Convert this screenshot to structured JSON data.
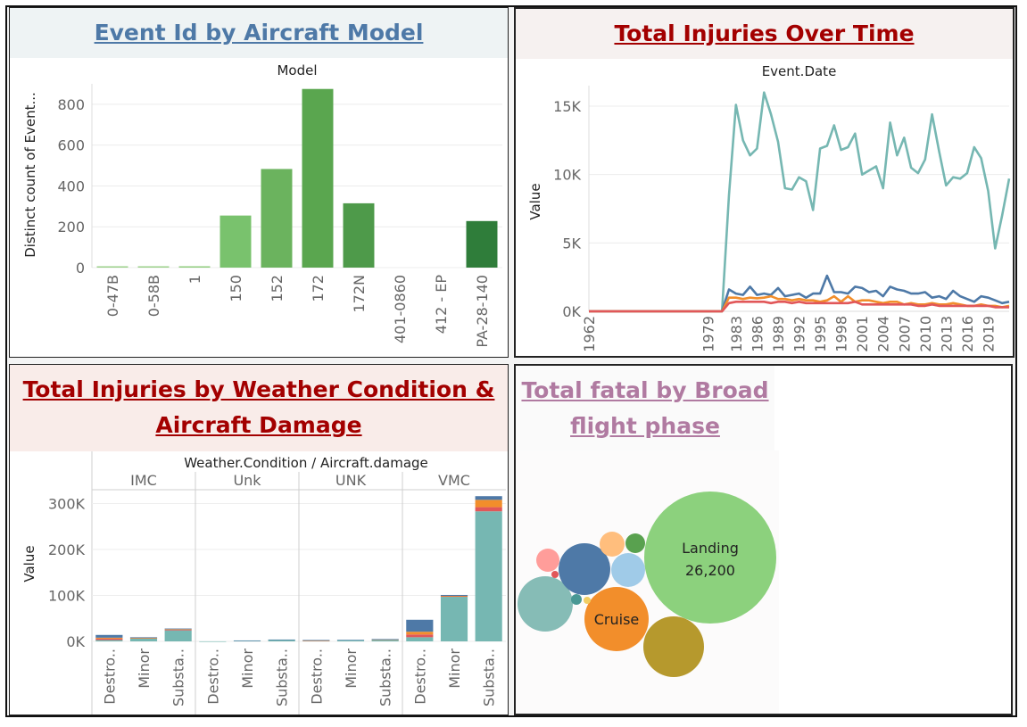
{
  "titles": {
    "model": "Event Id by Aircraft Model",
    "time": "Total Injuries Over Time",
    "weather_line1": "Total Injuries by Weather Condition &",
    "weather_line2": "Aircraft Damage",
    "phase_line1": "Total fatal by Broad",
    "phase_line2": "flight phase"
  },
  "colors": {
    "title_blue": "#4e79a7",
    "title_red": "#a30000",
    "title_pink": "#b07aa1"
  },
  "chart_data": [
    {
      "type": "bar",
      "header": "Model",
      "ylabel": "Distinct count of Event...",
      "ylim": [
        0,
        900
      ],
      "yticks": [
        0,
        200,
        400,
        600,
        800
      ],
      "categories": [
        "0-47B",
        "0-58B",
        "1",
        "150",
        "152",
        "172",
        "172N",
        "401-0860",
        "412 - EP",
        "PA-28-140"
      ],
      "values": [
        1,
        1,
        5,
        255,
        483,
        875,
        315,
        0,
        0,
        228
      ],
      "colors": [
        "#9bd08a",
        "#9bd08a",
        "#8fcc7d",
        "#79c26d",
        "#6bb35e",
        "#5aa64f",
        "#4e9a4a",
        "#9bd08a",
        "#9bd08a",
        "#2f7d3a"
      ]
    },
    {
      "type": "line",
      "header": "Event.Date",
      "ylabel": "Value",
      "ylim": [
        0,
        16500
      ],
      "yticks": [
        0,
        5000,
        10000,
        15000
      ],
      "ytick_labels": [
        "0K",
        "5K",
        "10K",
        "15K"
      ],
      "xlim": [
        1962,
        2022
      ],
      "xticks": [
        1962,
        1979,
        1983,
        1986,
        1989,
        1992,
        1995,
        1998,
        2001,
        2004,
        2007,
        2010,
        2013,
        2016,
        2019
      ],
      "series": [
        {
          "color": "#76b7b2",
          "x": [
            1962,
            1977,
            1979,
            1980,
            1981,
            1982,
            1983,
            1984,
            1985,
            1986,
            1987,
            1988,
            1989,
            1990,
            1991,
            1992,
            1993,
            1994,
            1995,
            1996,
            1997,
            1998,
            1999,
            2000,
            2001,
            2002,
            2003,
            2004,
            2005,
            2006,
            2007,
            2008,
            2009,
            2010,
            2011,
            2012,
            2013,
            2014,
            2015,
            2016,
            2017,
            2018,
            2019,
            2020,
            2021,
            2022
          ],
          "y": [
            0,
            0,
            0,
            0,
            0,
            8500,
            15100,
            12500,
            11400,
            11900,
            16000,
            14400,
            12400,
            9000,
            8900,
            9800,
            9500,
            7400,
            11900,
            12100,
            13600,
            11800,
            12000,
            13000,
            10000,
            10300,
            10600,
            9000,
            13800,
            11400,
            12700,
            10500,
            10100,
            11100,
            14400,
            11700,
            9200,
            9800,
            9700,
            10100,
            12000,
            11200,
            8800,
            4600,
            7000,
            9700
          ]
        },
        {
          "color": "#4e79a7",
          "x": [
            1962,
            1977,
            1979,
            1980,
            1981,
            1982,
            1983,
            1984,
            1985,
            1986,
            1987,
            1988,
            1989,
            1990,
            1991,
            1992,
            1993,
            1994,
            1995,
            1996,
            1997,
            1998,
            1999,
            2000,
            2001,
            2002,
            2003,
            2004,
            2005,
            2006,
            2007,
            2008,
            2009,
            2010,
            2011,
            2012,
            2013,
            2014,
            2015,
            2016,
            2017,
            2018,
            2019,
            2020,
            2021,
            2022
          ],
          "y": [
            0,
            0,
            0,
            0,
            0,
            1600,
            1300,
            1200,
            1800,
            1200,
            1300,
            1200,
            1700,
            1100,
            1200,
            1300,
            1000,
            1300,
            1300,
            2600,
            1400,
            1400,
            1300,
            1800,
            1700,
            1400,
            1500,
            1100,
            1800,
            1600,
            1500,
            1300,
            1300,
            1400,
            1000,
            1100,
            900,
            1500,
            1100,
            900,
            700,
            1100,
            1000,
            800,
            600,
            700
          ]
        },
        {
          "color": "#f28e2b",
          "x": [
            1962,
            1977,
            1979,
            1980,
            1981,
            1982,
            1983,
            1984,
            1985,
            1986,
            1987,
            1988,
            1989,
            1990,
            1991,
            1992,
            1993,
            1994,
            1995,
            1996,
            1997,
            1998,
            1999,
            2000,
            2001,
            2002,
            2003,
            2004,
            2005,
            2006,
            2007,
            2008,
            2009,
            2010,
            2011,
            2012,
            2013,
            2014,
            2015,
            2016,
            2017,
            2018,
            2019,
            2020,
            2021,
            2022
          ],
          "y": [
            0,
            0,
            0,
            0,
            0,
            1000,
            1000,
            900,
            1000,
            950,
            1000,
            1100,
            900,
            900,
            800,
            900,
            800,
            800,
            700,
            800,
            1100,
            700,
            1100,
            700,
            800,
            800,
            700,
            600,
            700,
            700,
            500,
            600,
            500,
            500,
            600,
            500,
            500,
            600,
            500,
            400,
            400,
            500,
            400,
            400,
            300,
            400
          ]
        },
        {
          "color": "#e15759",
          "x": [
            1962,
            1977,
            1979,
            1980,
            1981,
            1982,
            1983,
            1984,
            1985,
            1986,
            1987,
            1988,
            1989,
            1990,
            1991,
            1992,
            1993,
            1994,
            1995,
            1996,
            1997,
            1998,
            1999,
            2000,
            2001,
            2002,
            2003,
            2004,
            2005,
            2006,
            2007,
            2008,
            2009,
            2010,
            2011,
            2012,
            2013,
            2014,
            2015,
            2016,
            2017,
            2018,
            2019,
            2020,
            2021,
            2022
          ],
          "y": [
            0,
            0,
            0,
            0,
            0,
            600,
            700,
            700,
            700,
            700,
            700,
            600,
            700,
            700,
            600,
            700,
            600,
            600,
            600,
            600,
            600,
            600,
            600,
            700,
            500,
            500,
            500,
            500,
            500,
            500,
            500,
            500,
            400,
            400,
            500,
            400,
            400,
            400,
            400,
            400,
            400,
            400,
            400,
            300,
            300,
            300
          ]
        }
      ]
    },
    {
      "type": "bar",
      "stacked": true,
      "header": "Weather.Condition / Aircraft.damage",
      "ylabel": "Value",
      "ylim": [
        0,
        330000
      ],
      "yticks": [
        0,
        100000,
        200000,
        300000
      ],
      "ytick_labels": [
        "0K",
        "100K",
        "200K",
        "300K"
      ],
      "groups": [
        {
          "name": "IMC",
          "bars": [
            {
              "label": "Destro..",
              "values": [
                3000,
                3000,
                2000,
                6000
              ]
            },
            {
              "label": "Minor",
              "values": [
                7000,
                500,
                500,
                1000
              ]
            },
            {
              "label": "Substa..",
              "values": [
                24000,
                1500,
                1000,
                1500
              ]
            }
          ]
        },
        {
          "name": "Unk",
          "bars": [
            {
              "label": "Destro..",
              "values": [
                100,
                0,
                0,
                0
              ]
            },
            {
              "label": "Minor",
              "values": [
                1500,
                0,
                0,
                500
              ]
            },
            {
              "label": "Substa..",
              "values": [
                3500,
                0,
                0,
                500
              ]
            }
          ]
        },
        {
          "name": "UNK",
          "bars": [
            {
              "label": "Destro..",
              "values": [
                1500,
                500,
                500,
                500
              ]
            },
            {
              "label": "Minor",
              "values": [
                3000,
                0,
                0,
                300
              ]
            },
            {
              "label": "Substa..",
              "values": [
                4000,
                500,
                200,
                300
              ]
            }
          ]
        },
        {
          "name": "VMC",
          "bars": [
            {
              "label": "Destro..",
              "values": [
                9000,
                6000,
                6000,
                26000
              ]
            },
            {
              "label": "Minor",
              "values": [
                97000,
                1500,
                500,
                2000
              ]
            },
            {
              "label": "Substa..",
              "values": [
                283000,
                9000,
                16000,
                8000
              ]
            }
          ]
        }
      ],
      "series_colors": [
        "#76b7b2",
        "#e15759",
        "#f28e2b",
        "#4e79a7"
      ]
    },
    {
      "type": "bubble",
      "bubbles": [
        {
          "name": "Landing",
          "value": 26200,
          "label": "Landing",
          "sublabel": "26,200",
          "color": "#8cd17d"
        },
        {
          "name": "Cruise",
          "label": "Cruise",
          "color": "#f28e2b"
        },
        {
          "color": "#b6992d"
        },
        {
          "color": "#86bcb6"
        },
        {
          "color": "#4e79a7"
        },
        {
          "color": "#a0cbe8"
        },
        {
          "color": "#ffbe7d"
        },
        {
          "color": "#59a14f"
        },
        {
          "color": "#ff9d9a"
        },
        {
          "color": "#e15759"
        },
        {
          "color": "#499894"
        },
        {
          "color": "#f1ce63"
        }
      ]
    }
  ]
}
